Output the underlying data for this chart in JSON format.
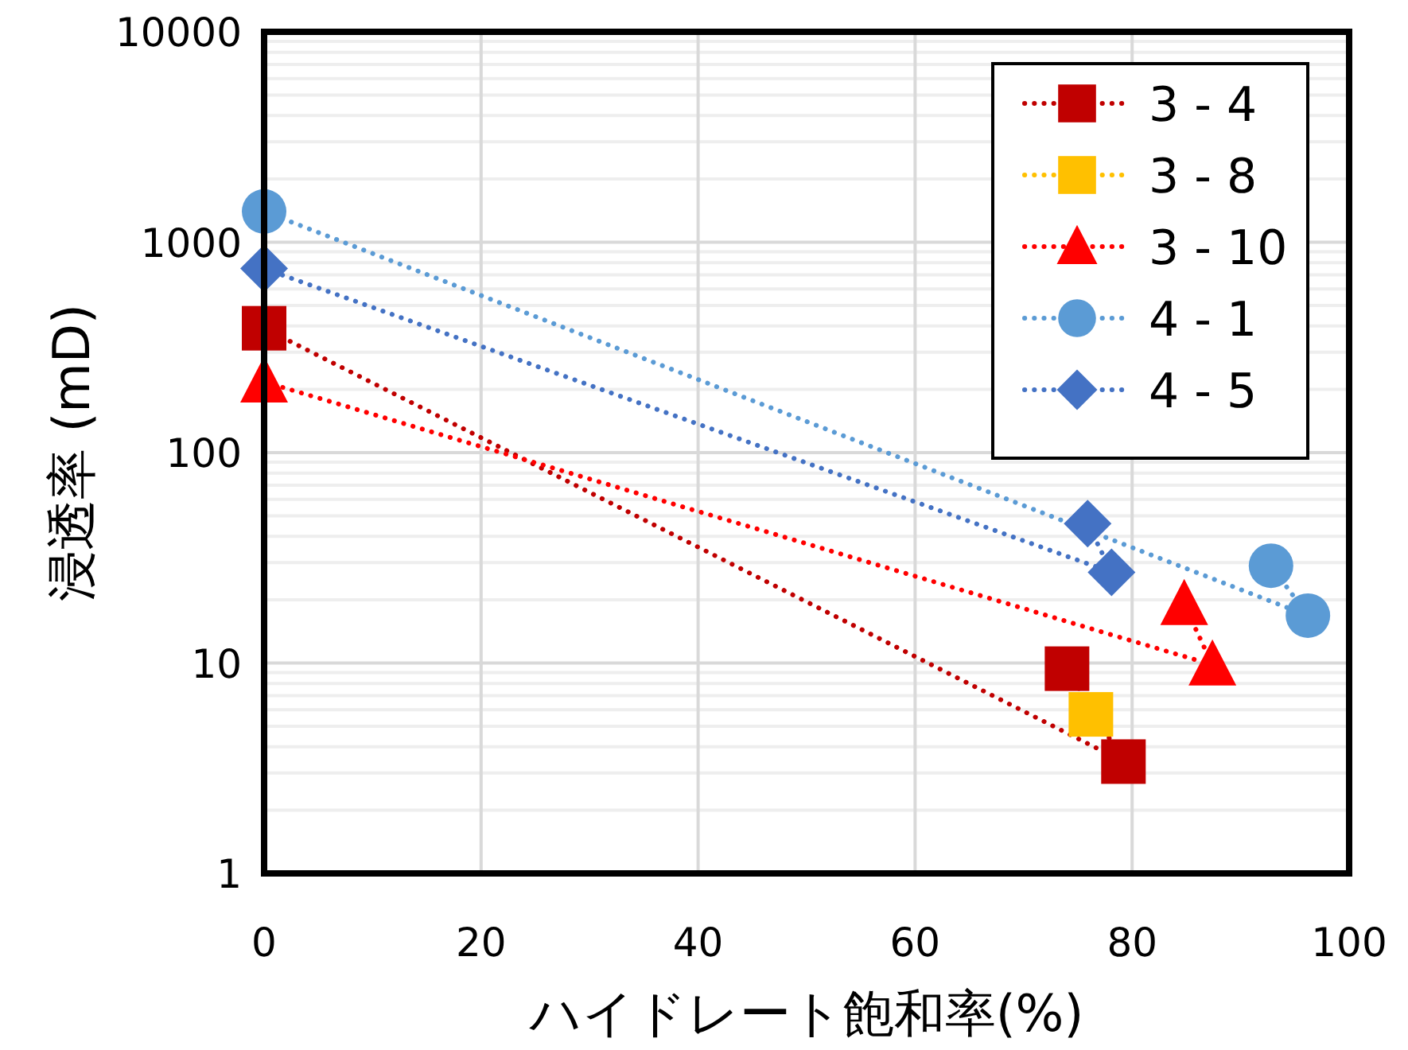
{
  "chart_data": {
    "type": "line",
    "xlabel": "ハイドレート飽和率(%)",
    "ylabel": "浸透率 (mD)",
    "xlim": [
      0,
      100
    ],
    "ylim": [
      1,
      10000
    ],
    "xticks": [
      0,
      20,
      40,
      60,
      80,
      100
    ],
    "yticks": [
      1,
      10,
      100,
      1000,
      10000
    ],
    "log": "y",
    "grid": true,
    "legend": "top right",
    "line_style": "dotted",
    "series": [
      {
        "name": "3 - 4",
        "color": "#c00000",
        "marker": "square",
        "x": [
          0,
          79.2,
          74.0
        ],
        "values": [
          390,
          3.4,
          9.4
        ]
      },
      {
        "name": "3 - 8",
        "color": "#ffc000",
        "marker": "square",
        "x": [
          76.2
        ],
        "values": [
          5.7
        ]
      },
      {
        "name": "3 - 10",
        "color": "#ff0000",
        "marker": "triangle",
        "x": [
          0,
          87.4,
          84.8
        ],
        "values": [
          217,
          9.8,
          19
        ]
      },
      {
        "name": "4 - 1",
        "color": "#5b9bd5",
        "marker": "circle",
        "x": [
          0,
          96.2,
          92.8
        ],
        "values": [
          1400,
          16.8,
          29
        ]
      },
      {
        "name": "4 - 5",
        "color": "#4472c4",
        "marker": "diamond",
        "x": [
          0,
          78.1,
          75.9
        ],
        "values": [
          750,
          27,
          46
        ]
      }
    ]
  }
}
